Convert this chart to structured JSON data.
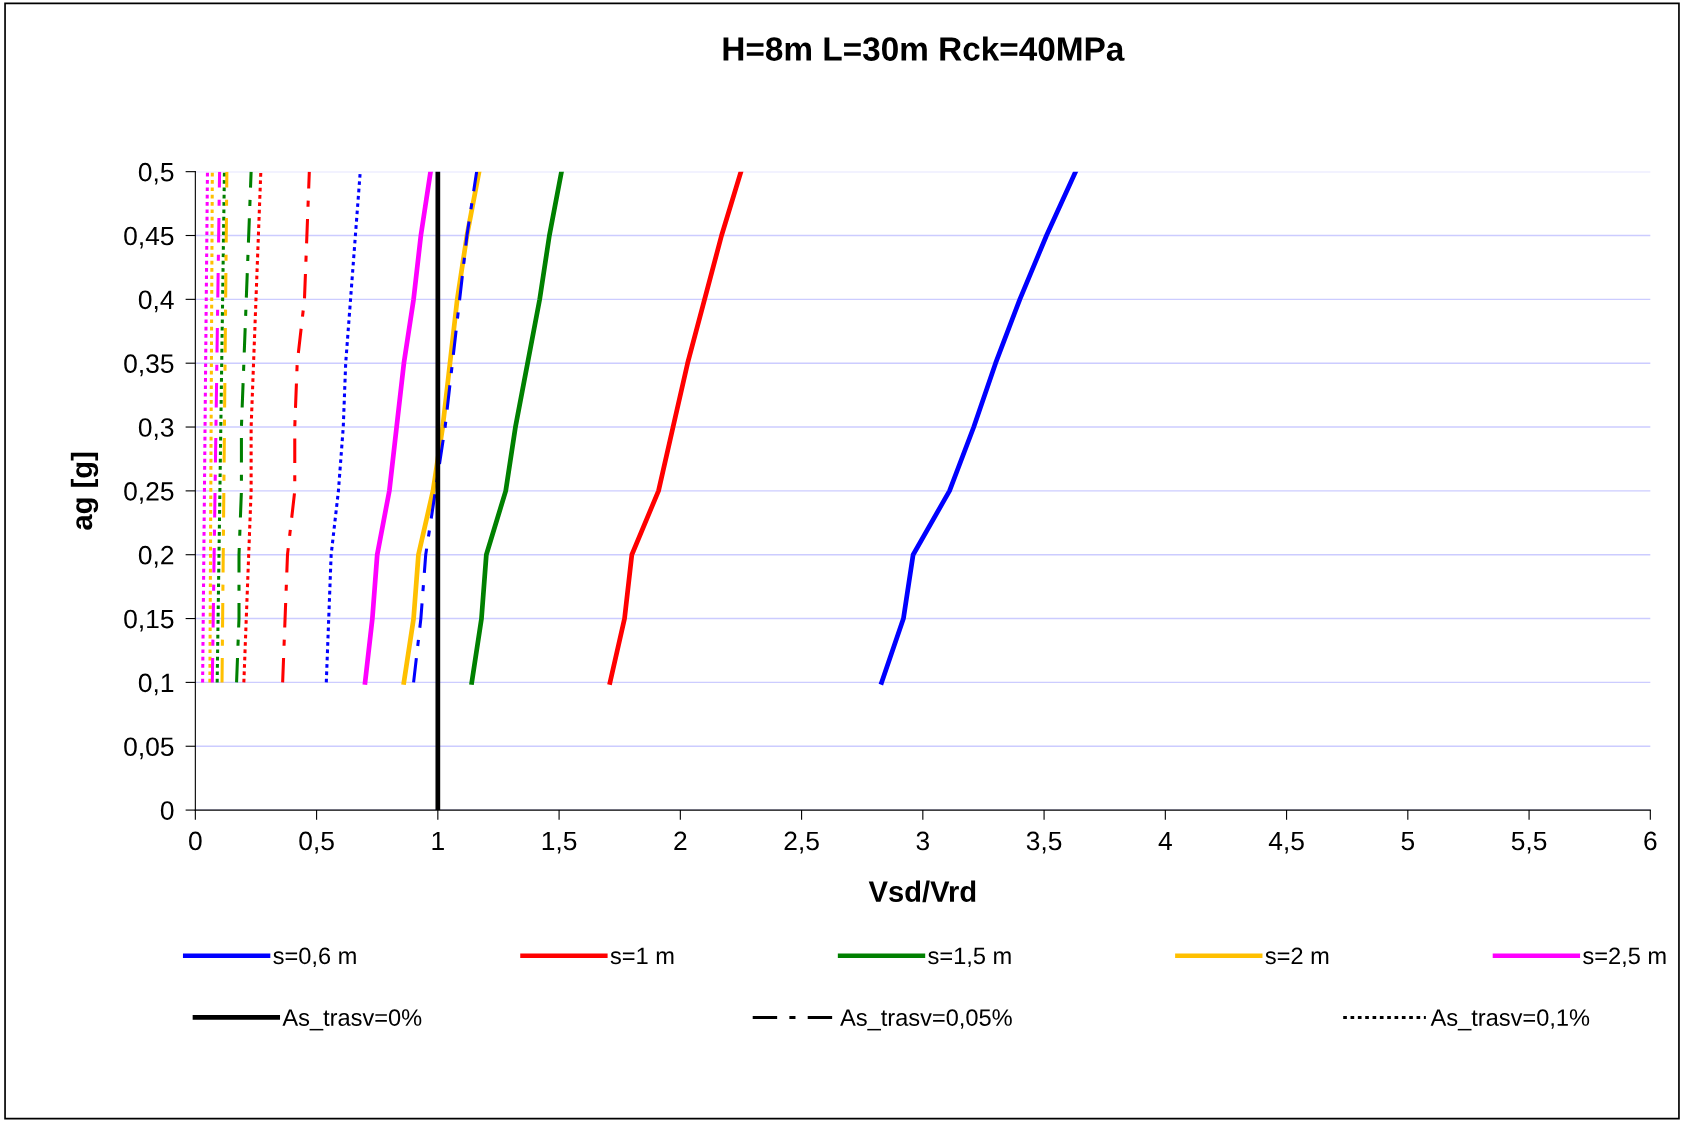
{
  "chart_data": {
    "type": "line",
    "title": "H=8m L=30m Rck=40MPa",
    "xlabel": "Vsd/Vrd",
    "ylabel": "ag [g]",
    "xlim": [
      0,
      6
    ],
    "ylim": [
      0,
      0.5
    ],
    "xticks": [
      0,
      {
        "value": 0.5,
        "label": "0,5"
      },
      1,
      {
        "value": 1.5,
        "label": "1,5"
      },
      2,
      {
        "value": 2.5,
        "label": "2,5"
      },
      3,
      {
        "value": 3.5,
        "label": "3,5"
      },
      4,
      {
        "value": 4.5,
        "label": "4,5"
      },
      5,
      {
        "value": 5.5,
        "label": "5,5"
      },
      6
    ],
    "yticks": [
      0,
      {
        "value": 0.05,
        "label": "0,05"
      },
      {
        "value": 0.1,
        "label": "0,1"
      },
      {
        "value": 0.15,
        "label": "0,15"
      },
      {
        "value": 0.2,
        "label": "0,2"
      },
      {
        "value": 0.25,
        "label": "0,25"
      },
      {
        "value": 0.3,
        "label": "0,3"
      },
      {
        "value": 0.35,
        "label": "0,35"
      },
      {
        "value": 0.4,
        "label": "0,4"
      },
      {
        "value": 0.45,
        "label": "0,45"
      },
      {
        "value": 0.5,
        "label": "0,5"
      }
    ],
    "grid": "y",
    "legend": "bottom",
    "marker": "none",
    "series": [
      {
        "name": "s=0,6 m",
        "color": "#0000ff",
        "line_style": "solid",
        "x": [
          2.83,
          2.92,
          2.96,
          3.08,
          3.11,
          3.21,
          3.3,
          3.4,
          3.51,
          3.63
        ],
        "values": [
          0.1,
          0.15,
          0.2,
          0.24,
          0.25,
          0.3,
          0.35,
          0.4,
          0.45,
          0.5
        ]
      },
      {
        "name": "s=1 m",
        "color": "#ff0000",
        "line_style": "solid",
        "x": [
          1.71,
          1.77,
          1.8,
          1.91,
          1.97,
          2.03,
          2.1,
          2.17,
          2.25
        ],
        "values": [
          0.1,
          0.15,
          0.2,
          0.25,
          0.3,
          0.35,
          0.4,
          0.45,
          0.5
        ]
      },
      {
        "name": "s=1,5 m",
        "color": "#008000",
        "line_style": "solid",
        "x": [
          1.14,
          1.18,
          1.2,
          1.28,
          1.32,
          1.37,
          1.42,
          1.46,
          1.51
        ],
        "values": [
          0.1,
          0.15,
          0.2,
          0.25,
          0.3,
          0.35,
          0.4,
          0.45,
          0.5
        ]
      },
      {
        "name": "s=2 m",
        "color": "#ffc000",
        "line_style": "solid",
        "x": [
          0.86,
          0.9,
          0.92,
          0.98,
          1.02,
          1.05,
          1.08,
          1.12,
          1.17
        ],
        "values": [
          0.1,
          0.15,
          0.2,
          0.25,
          0.3,
          0.35,
          0.4,
          0.45,
          0.5
        ]
      },
      {
        "name": "s=2,5 m",
        "color": "#ff00ff",
        "line_style": "solid",
        "x": [
          0.7,
          0.73,
          0.75,
          0.8,
          0.83,
          0.86,
          0.9,
          0.93,
          0.97
        ],
        "values": [
          0.1,
          0.15,
          0.2,
          0.25,
          0.3,
          0.35,
          0.4,
          0.45,
          0.5
        ]
      },
      {
        "color": "#0000ff",
        "line_style": "dashdot",
        "x": [
          0.9,
          0.93,
          0.95,
          0.99,
          1.03,
          1.06,
          1.09,
          1.12,
          1.16
        ],
        "values": [
          0.1,
          0.15,
          0.2,
          0.25,
          0.3,
          0.35,
          0.4,
          0.45,
          0.5
        ]
      },
      {
        "color": "#0000ff",
        "line_style": "dotted",
        "x": [
          0.54,
          0.55,
          0.56,
          0.59,
          0.61,
          0.62,
          0.64,
          0.66,
          0.68
        ],
        "values": [
          0.1,
          0.15,
          0.2,
          0.25,
          0.3,
          0.35,
          0.4,
          0.45,
          0.5
        ]
      },
      {
        "color": "#ff0000",
        "line_style": "dashdot",
        "x": [
          0.36,
          0.37,
          0.38,
          0.41,
          0.41,
          0.42,
          0.45,
          0.46,
          0.47
        ],
        "values": [
          0.1,
          0.15,
          0.2,
          0.25,
          0.3,
          0.35,
          0.4,
          0.45,
          0.5
        ]
      },
      {
        "color": "#ff0000",
        "line_style": "dotted",
        "x": [
          0.2,
          0.21,
          0.22,
          0.23,
          0.23,
          0.24,
          0.25,
          0.26,
          0.27
        ],
        "values": [
          0.1,
          0.15,
          0.2,
          0.25,
          0.3,
          0.35,
          0.4,
          0.45,
          0.5
        ]
      },
      {
        "color": "#008000",
        "line_style": "dashdot",
        "x": [
          0.17,
          0.18,
          0.18,
          0.19,
          0.19,
          0.2,
          0.21,
          0.22,
          0.23
        ],
        "values": [
          0.1,
          0.15,
          0.2,
          0.25,
          0.3,
          0.35,
          0.4,
          0.45,
          0.5
        ]
      },
      {
        "color": "#008000",
        "line_style": "dotted",
        "x": [
          0.09,
          0.12
        ],
        "values": [
          0.1,
          0.5
        ]
      },
      {
        "color": "#ffc000",
        "line_style": "dashdot",
        "x": [
          0.11,
          0.13
        ],
        "values": [
          0.1,
          0.5
        ]
      },
      {
        "color": "#ffc000",
        "line_style": "dotted",
        "x": [
          0.06,
          0.07
        ],
        "values": [
          0.1,
          0.5
        ]
      },
      {
        "color": "#ff00ff",
        "line_style": "dashdot",
        "x": [
          0.07,
          0.1
        ],
        "values": [
          0.1,
          0.5
        ]
      },
      {
        "color": "#ff00ff",
        "line_style": "dotted",
        "x": [
          0.03,
          0.05
        ],
        "values": [
          0.1,
          0.5
        ]
      },
      {
        "name": "As_trasv=0%",
        "color": "#000000",
        "line_style": "solid",
        "x": [
          1,
          1
        ],
        "values": [
          0,
          0.5
        ]
      },
      {
        "name": "As_trasv=0,05%",
        "color": "#000000",
        "line_style": "dashdot",
        "x": [
          null,
          null
        ],
        "values": [
          null,
          null
        ]
      },
      {
        "name": "As_trasv=0,1%",
        "color": "#000000",
        "line_style": "dotted",
        "x": [
          null,
          null
        ],
        "values": [
          null,
          null
        ]
      }
    ]
  }
}
